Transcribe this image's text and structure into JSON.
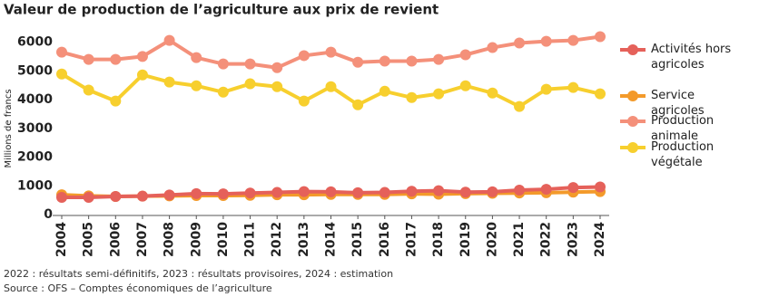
{
  "chart_data": {
    "type": "line",
    "title": "Valeur de production de l’agriculture aux prix de revient",
    "y_label": "Millions de francs",
    "notes": [
      "2022 : résultats semi-définitifs, 2023 : résultats provisoires, 2024 : estimation",
      "Source : OFS – Comptes économiques de l’agriculture"
    ],
    "categories": [
      "2004",
      "2005",
      "2006",
      "2007",
      "2008",
      "2009",
      "2010",
      "2011",
      "2012",
      "2013",
      "2014",
      "2015",
      "2016",
      "2017",
      "2018",
      "2019",
      "2020",
      "2021",
      "2022",
      "2023",
      "2024"
    ],
    "series": [
      {
        "name": "Activités hors agricoles",
        "color": "#e5615a",
        "values": [
          600,
          600,
          630,
          640,
          680,
          730,
          720,
          750,
          770,
          800,
          790,
          760,
          770,
          810,
          830,
          780,
          790,
          850,
          880,
          940,
          960
        ]
      },
      {
        "name": "Service agricoles",
        "color": "#f39a2b",
        "values": [
          690,
          650,
          630,
          640,
          650,
          660,
          660,
          670,
          690,
          690,
          700,
          700,
          700,
          720,
          710,
          730,
          740,
          750,
          760,
          780,
          800
        ]
      },
      {
        "name": "Production animale",
        "color": "#f4907a",
        "values": [
          5650,
          5400,
          5400,
          5500,
          6060,
          5460,
          5240,
          5240,
          5110,
          5530,
          5650,
          5300,
          5340,
          5340,
          5400,
          5560,
          5810,
          5970,
          6030,
          6060,
          6190
        ]
      },
      {
        "name": "Production végétale",
        "color": "#f7cf2e",
        "values": [
          4890,
          4330,
          3950,
          4860,
          4610,
          4480,
          4260,
          4550,
          4450,
          3950,
          4450,
          3820,
          4290,
          4070,
          4200,
          4480,
          4230,
          3760,
          4360,
          4420,
          4200
        ]
      }
    ],
    "ylim": [
      0,
      6300
    ],
    "yticks": [
      0,
      1000,
      2000,
      3000,
      4000,
      5000,
      6000
    ],
    "grid": false
  }
}
